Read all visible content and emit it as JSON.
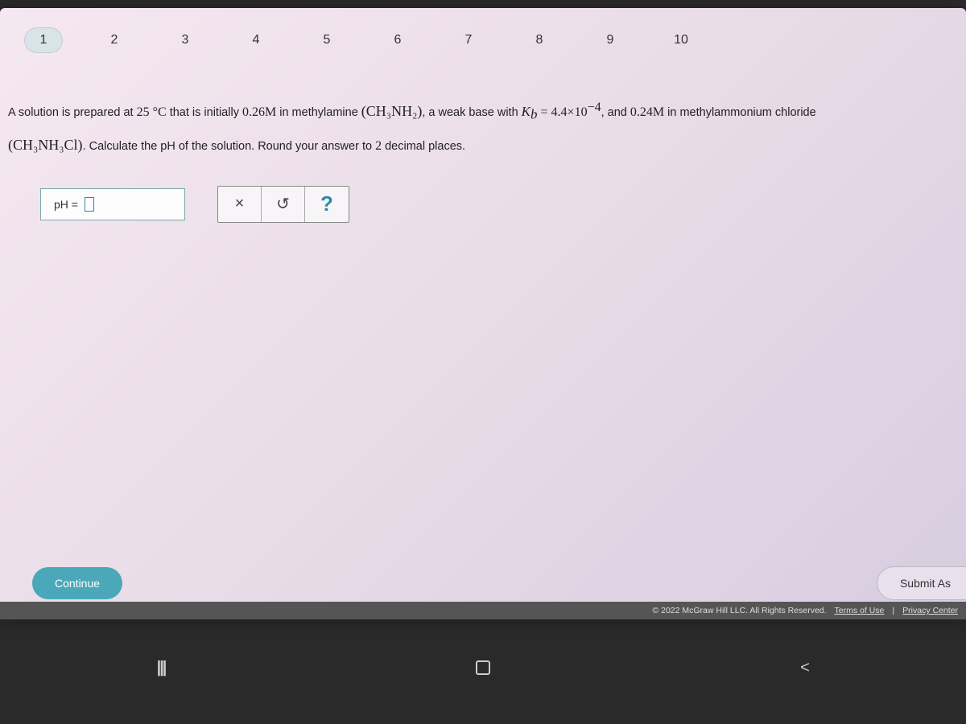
{
  "nav": {
    "tabs": [
      "1",
      "2",
      "3",
      "4",
      "5",
      "6",
      "7",
      "8",
      "9",
      "10"
    ],
    "active_index": 0
  },
  "question": {
    "line1_a": "A solution is prepared at ",
    "temp": "25 °C",
    "line1_b": " that is initially ",
    "conc1": "0.26M",
    "line1_c": " in methylamine ",
    "formula1": "(CH₃NH₂)",
    "line1_d": ", a weak base with ",
    "kb_var": "K",
    "kb_sub": "b",
    "kb_eq": " = 4.4×10",
    "kb_exp": "−4",
    "line1_e": ", and ",
    "conc2": "0.24M",
    "line1_f": " in methylammonium chloride",
    "formula2": "(CH₃NH₃Cl)",
    "line2_a": ". Calculate the pH of the solution. Round your answer to ",
    "decimals": "2",
    "line2_b": " decimal places."
  },
  "answer": {
    "label": "pH ="
  },
  "tools": {
    "clear": "×",
    "reset": "↺",
    "help": "?"
  },
  "footer": {
    "continue": "Continue",
    "submit": "Submit As",
    "copyright": "© 2022 McGraw Hill LLC. All Rights Reserved.",
    "terms": "Terms of Use",
    "sep": " | ",
    "privacy": "Privacy Center"
  },
  "device": {
    "recents": "|||",
    "back": "<"
  },
  "colors": {
    "accent": "#4aa8b8",
    "input_border": "#2a8aa8"
  }
}
